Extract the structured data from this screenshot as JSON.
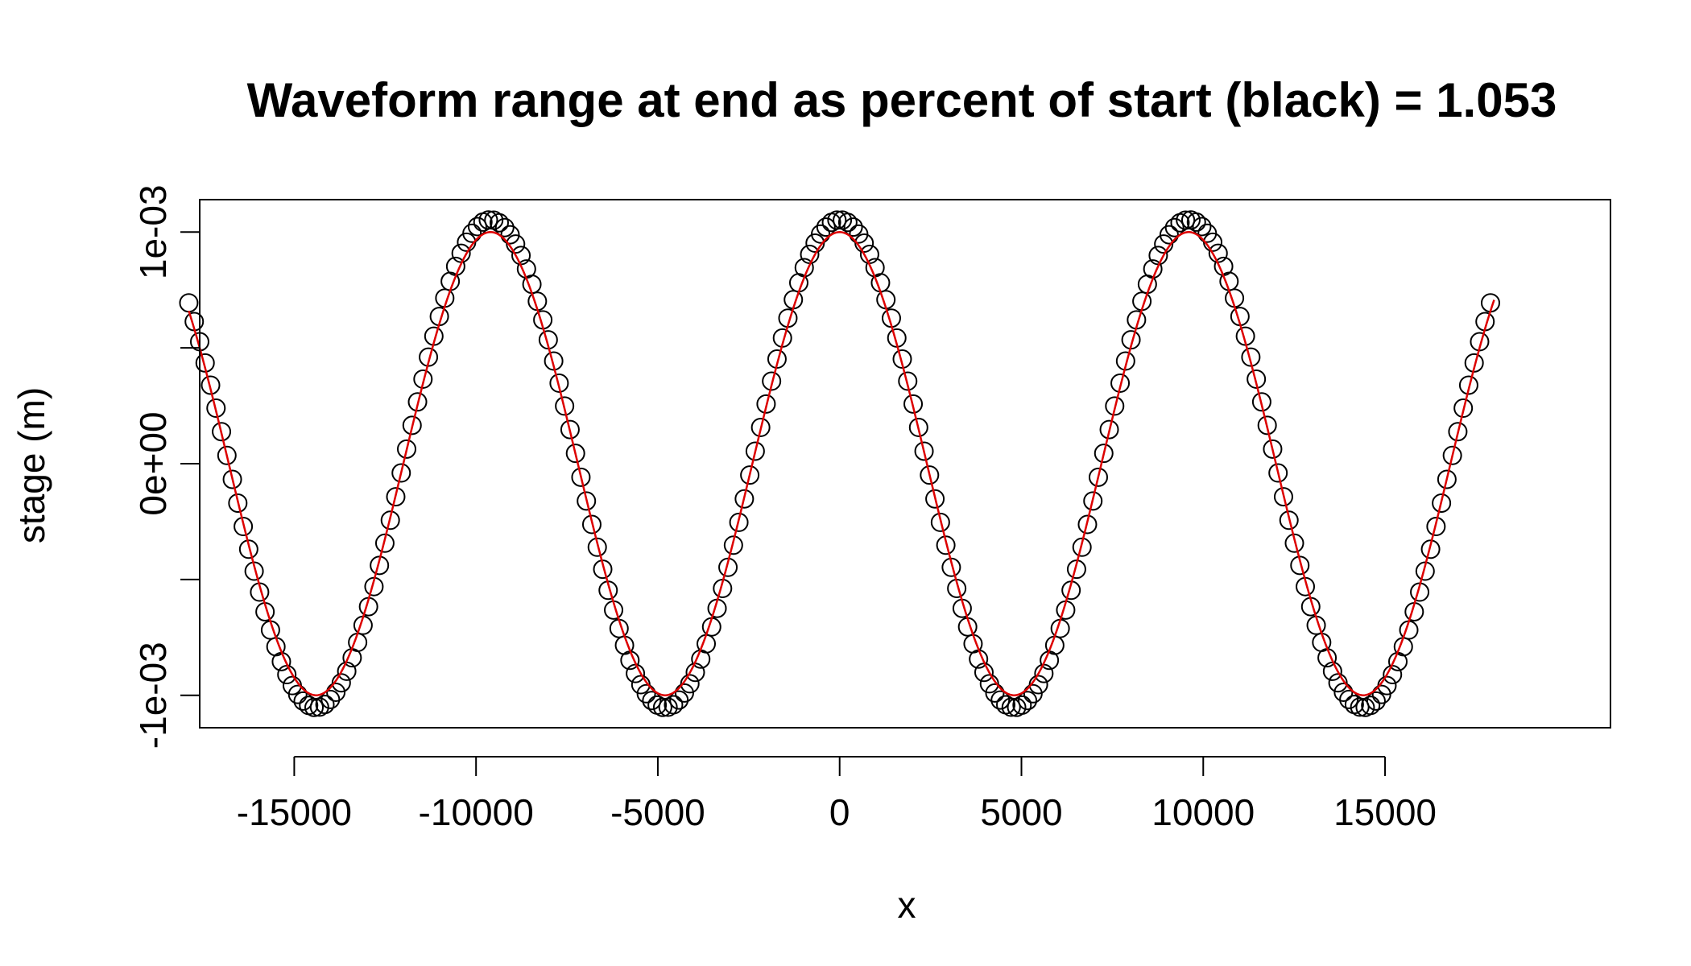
{
  "chart_data": {
    "type": "scatter",
    "title": "Waveform range at end as percent of start (black) = 1.053",
    "xlabel": "x",
    "ylabel": "stage (m)",
    "xlim": [
      -17600,
      21200
    ],
    "ylim": [
      -0.00114,
      0.00114
    ],
    "x_ticks": [
      -15000,
      -10000,
      -5000,
      0,
      5000,
      10000,
      15000
    ],
    "x_tick_labels": [
      "-15000",
      "-10000",
      "-5000",
      "0",
      "5000",
      "10000",
      "15000"
    ],
    "y_ticks": [
      -0.001,
      -0.0005,
      0,
      0.0005,
      0.001
    ],
    "y_tick_labels": [
      "-1e-03",
      "",
      "0e+00",
      "",
      "1e-03"
    ],
    "grid": false,
    "legend": "none",
    "series": [
      {
        "kind": "points",
        "color": "#000000",
        "marker": "open-circle",
        "x_range": [
          -17900,
          17900
        ],
        "point_count": 240,
        "amplitude": 0.001053,
        "wavelength": 9600,
        "crest_x": 0
      },
      {
        "kind": "line",
        "color": "#dd0000",
        "x_range": [
          -17900,
          18000
        ],
        "amplitude": 0.001,
        "wavelength": 9600,
        "crest_x": 0
      }
    ]
  }
}
